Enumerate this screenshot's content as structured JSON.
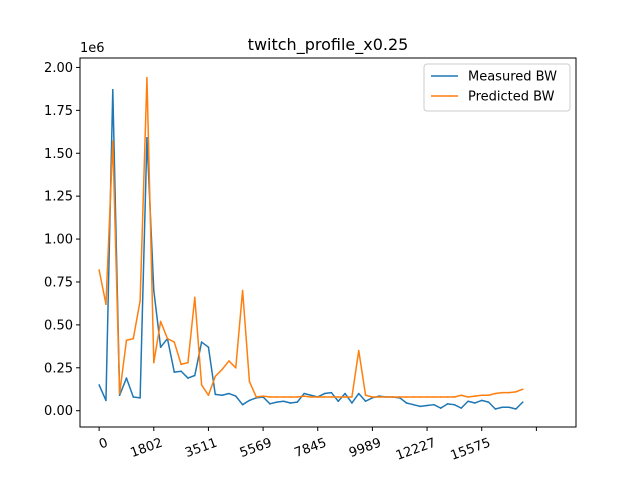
{
  "chart_data": {
    "type": "line",
    "title": "twitch_profile_x0.25",
    "xlabel": "",
    "ylabel": "",
    "y_offset_label": "1e6",
    "x_tick_labels": [
      "0",
      "1802",
      "3511",
      "5569",
      "7845",
      "9989",
      "12227",
      "15575"
    ],
    "y_ticks": [
      0.0,
      0.25,
      0.5,
      0.75,
      1.0,
      1.25,
      1.5,
      1.75,
      2.0
    ],
    "y_tick_labels": [
      "0.00",
      "0.25",
      "0.50",
      "0.75",
      "1.00",
      "1.25",
      "1.50",
      "1.75",
      "2.00"
    ],
    "xlim": [
      -2.8,
      69.8
    ],
    "ylim": [
      -0.095,
      2.055
    ],
    "legend_position": "upper right",
    "grid": false,
    "series": [
      {
        "name": "Measured BW",
        "color": "#1f77b4",
        "values": [
          0.15,
          0.06,
          1.87,
          0.09,
          0.19,
          0.08,
          0.075,
          1.59,
          0.7,
          0.37,
          0.42,
          0.225,
          0.23,
          0.19,
          0.205,
          0.4,
          0.37,
          0.095,
          0.09,
          0.1,
          0.085,
          0.035,
          0.06,
          0.075,
          0.08,
          0.04,
          0.05,
          0.055,
          0.045,
          0.05,
          0.1,
          0.09,
          0.08,
          0.1,
          0.105,
          0.055,
          0.1,
          0.045,
          0.1,
          0.055,
          0.075,
          0.085,
          0.08,
          0.08,
          0.075,
          0.045,
          0.035,
          0.025,
          0.03,
          0.035,
          0.015,
          0.04,
          0.035,
          0.015,
          0.055,
          0.045,
          0.06,
          0.05,
          0.01,
          0.02,
          0.02,
          0.01,
          0.05
        ]
      },
      {
        "name": "Predicted BW",
        "color": "#ff7f0e",
        "values": [
          0.82,
          0.62,
          1.57,
          0.1,
          0.41,
          0.42,
          0.64,
          1.94,
          0.28,
          0.52,
          0.42,
          0.4,
          0.27,
          0.28,
          0.66,
          0.15,
          0.09,
          0.2,
          0.24,
          0.29,
          0.25,
          0.7,
          0.17,
          0.08,
          0.085,
          0.08,
          0.08,
          0.08,
          0.08,
          0.08,
          0.085,
          0.08,
          0.08,
          0.08,
          0.08,
          0.08,
          0.08,
          0.08,
          0.35,
          0.09,
          0.08,
          0.08,
          0.08,
          0.08,
          0.08,
          0.08,
          0.08,
          0.08,
          0.08,
          0.08,
          0.08,
          0.08,
          0.08,
          0.09,
          0.08,
          0.085,
          0.09,
          0.09,
          0.1,
          0.105,
          0.105,
          0.11,
          0.125
        ]
      }
    ]
  }
}
